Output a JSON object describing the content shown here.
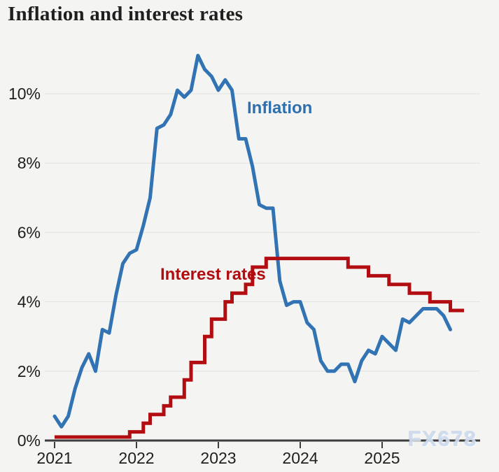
{
  "header": {
    "title": "Inflation and interest rates"
  },
  "labels": {
    "inflation": "Inflation",
    "interest_rates": "Interest rates",
    "watermark": "FX678"
  },
  "colors": {
    "background": "#f4f4f2",
    "title_text": "#1f1f1f",
    "axis_text": "#202020",
    "grid_line": "#e2e2df",
    "axis_line": "#3d3d3d",
    "inflation_blue": "#3273b3",
    "interest_red": "#b20d11",
    "watermark_blue": "#ccdbf0"
  },
  "chart_data": {
    "type": "line",
    "title": "Inflation and interest rates",
    "x_axis": {
      "tick_labels": [
        "2021",
        "2022",
        "2023",
        "2024",
        "2025"
      ],
      "range": [
        "Jan 2021",
        "Dec 2025"
      ]
    },
    "y_axis": {
      "tick_labels": [
        "0%",
        "2%",
        "4%",
        "6%",
        "8%",
        "10%"
      ],
      "tick_values": [
        0,
        2,
        4,
        6,
        8,
        10
      ],
      "unit": "%",
      "ylim": [
        0,
        11.5
      ],
      "grid": true
    },
    "legend": "inline-labels",
    "series": [
      {
        "name": "Inflation",
        "style": "line",
        "color": "#3273b3",
        "start": "Jan 2021",
        "frequency": "monthly",
        "values": [
          0.7,
          0.4,
          0.7,
          1.5,
          2.1,
          2.5,
          2.0,
          3.2,
          3.1,
          4.2,
          5.1,
          5.4,
          5.5,
          6.2,
          7.0,
          9.0,
          9.1,
          9.4,
          10.1,
          9.9,
          10.1,
          11.1,
          10.7,
          10.5,
          10.1,
          10.4,
          10.1,
          8.7,
          8.7,
          7.9,
          6.8,
          6.7,
          6.7,
          4.6,
          3.9,
          4.0,
          4.0,
          3.4,
          3.2,
          2.3,
          2.0,
          2.0,
          2.2,
          2.2,
          1.7,
          2.3,
          2.6,
          2.5,
          3.0,
          2.8,
          2.6,
          3.5,
          3.4,
          3.6,
          3.8,
          3.8,
          3.8,
          3.6,
          3.2
        ]
      },
      {
        "name": "Interest rates",
        "style": "step",
        "color": "#b20d11",
        "initial_rate": 0.1,
        "end_month_index": 60,
        "changes": [
          {
            "date": "Dec 2021",
            "month_index": 11,
            "rate": 0.25
          },
          {
            "date": "Feb 2022",
            "month_index": 13,
            "rate": 0.5
          },
          {
            "date": "Mar 2022",
            "month_index": 14,
            "rate": 0.75
          },
          {
            "date": "May 2022",
            "month_index": 16,
            "rate": 1.0
          },
          {
            "date": "Jun 2022",
            "month_index": 17,
            "rate": 1.25
          },
          {
            "date": "Aug 2022",
            "month_index": 19,
            "rate": 1.75
          },
          {
            "date": "Sep 2022",
            "month_index": 20,
            "rate": 2.25
          },
          {
            "date": "Nov 2022",
            "month_index": 22,
            "rate": 3.0
          },
          {
            "date": "Dec 2022",
            "month_index": 23,
            "rate": 3.5
          },
          {
            "date": "Feb 2023",
            "month_index": 25,
            "rate": 4.0
          },
          {
            "date": "Mar 2023",
            "month_index": 26,
            "rate": 4.25
          },
          {
            "date": "May 2023",
            "month_index": 28,
            "rate": 4.5
          },
          {
            "date": "Jun 2023",
            "month_index": 29,
            "rate": 5.0
          },
          {
            "date": "Aug 2023",
            "month_index": 31,
            "rate": 5.25
          },
          {
            "date": "Aug 2024",
            "month_index": 43,
            "rate": 5.0
          },
          {
            "date": "Nov 2024",
            "month_index": 46,
            "rate": 4.75
          },
          {
            "date": "Feb 2025",
            "month_index": 49,
            "rate": 4.5
          },
          {
            "date": "May 2025",
            "month_index": 52,
            "rate": 4.25
          },
          {
            "date": "Aug 2025",
            "month_index": 55,
            "rate": 4.0
          },
          {
            "date": "Nov 2025",
            "month_index": 58,
            "rate": 3.75
          }
        ]
      }
    ]
  }
}
